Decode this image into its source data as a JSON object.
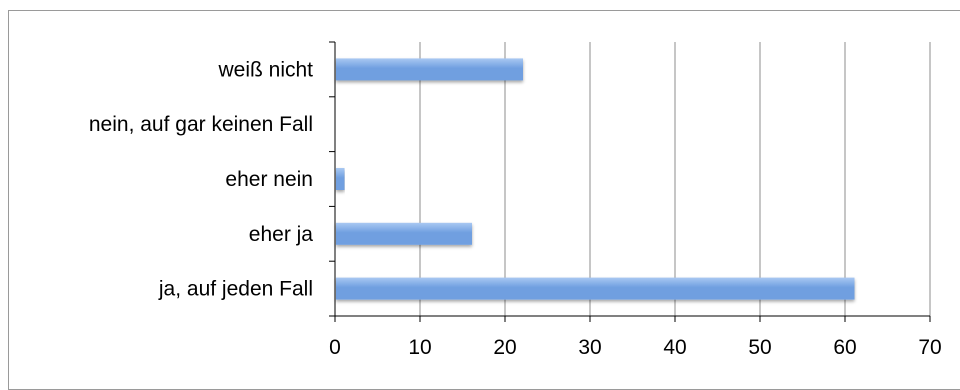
{
  "chart_data": {
    "type": "bar",
    "orientation": "horizontal",
    "categories": [
      "weiß nicht",
      "nein, auf gar keinen Fall",
      "eher nein",
      "eher ja",
      "ja, auf jeden Fall"
    ],
    "values": [
      22,
      0,
      1,
      16,
      61
    ],
    "xlim": [
      0,
      70
    ],
    "xticks": [
      "0",
      "10",
      "20",
      "30",
      "40",
      "50",
      "60",
      "70"
    ],
    "title": "",
    "xlabel": "",
    "ylabel": "",
    "grid": "vertical",
    "legend": "none",
    "bar_color": "#6f9fe0",
    "bar_color_light": "#a9c8f2",
    "grid_color": "#8c8c8c",
    "axis_color": "#000000"
  }
}
